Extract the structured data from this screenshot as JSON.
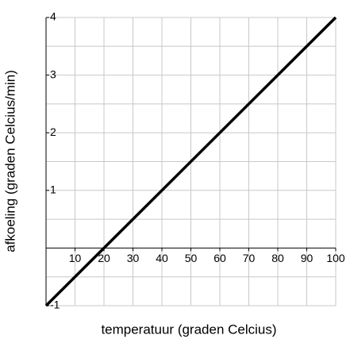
{
  "chart_data": {
    "type": "line",
    "x_label": "temperatuur (graden Celcius)",
    "y_label": "afkoeling (graden Celcius/min)",
    "x": [
      0,
      100
    ],
    "series": [
      {
        "color": "#000000",
        "values": [
          -1,
          4
        ]
      }
    ],
    "xlim": [
      0,
      100
    ],
    "xticks": [
      10,
      20,
      30,
      40,
      50,
      60,
      70,
      80,
      90,
      100
    ],
    "ylim": [
      -1,
      4
    ],
    "yticks": [
      -1,
      1,
      2,
      3,
      4
    ],
    "yminor_grid": [
      -0.5,
      0.5,
      1.5,
      2.5,
      3.5
    ],
    "grid": true
  }
}
